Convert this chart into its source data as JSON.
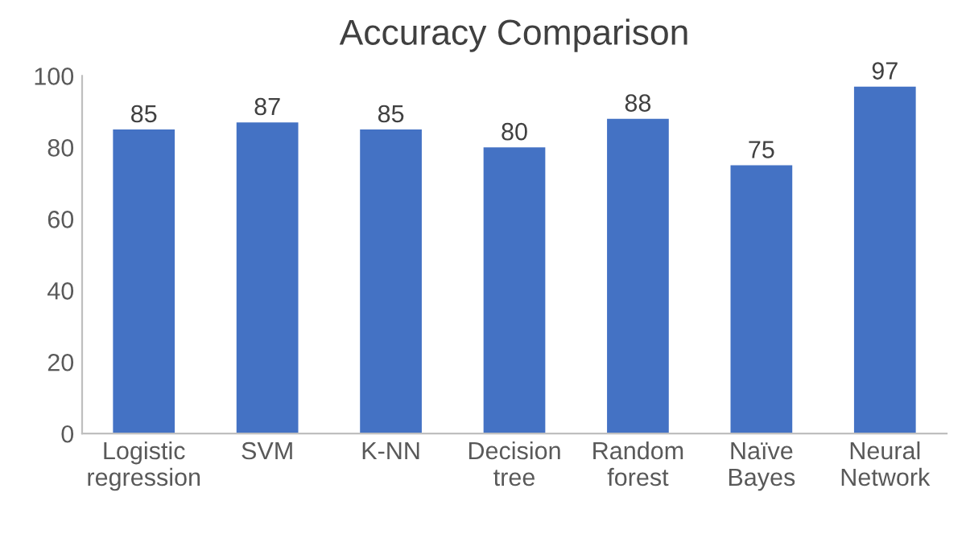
{
  "chart_data": {
    "type": "bar",
    "title": "Accuracy Comparison",
    "categories": [
      "Logistic regression",
      "SVM",
      "K-NN",
      "Decision tree",
      "Random forest",
      "Naïve Bayes",
      "Neural Network"
    ],
    "values": [
      85,
      87,
      85,
      80,
      88,
      75,
      97
    ],
    "color": "#4472c4",
    "ylim": [
      0,
      100
    ],
    "yticks": [
      0,
      20,
      40,
      60,
      80,
      100
    ],
    "data_labels": true,
    "grid": false,
    "legend": false
  }
}
